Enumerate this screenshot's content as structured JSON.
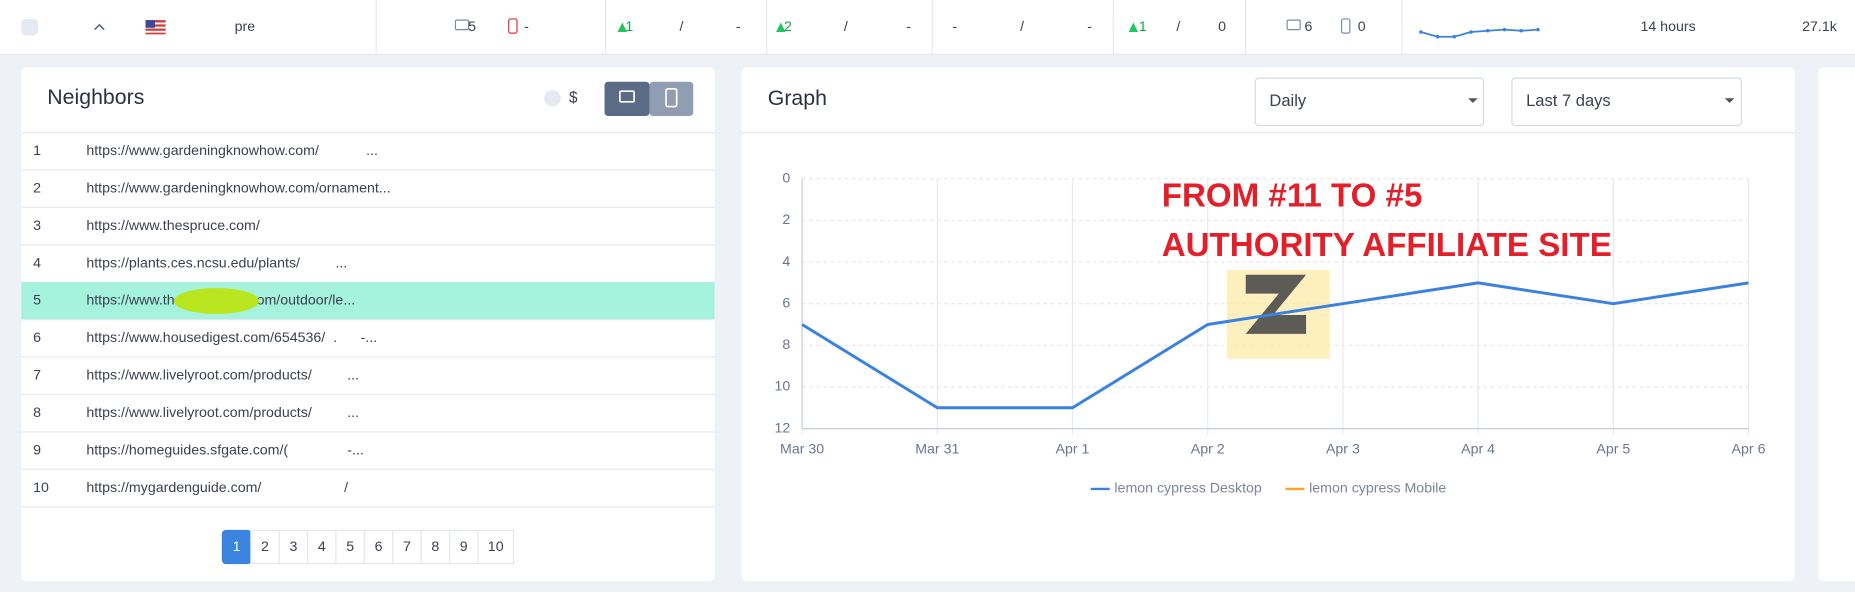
{
  "top_row": {
    "cells": [
      "pre",
      "5",
      "-",
      "1",
      "/",
      "-",
      "2",
      "/",
      "-",
      "-",
      "/",
      "-",
      "1",
      "/",
      "0",
      "6",
      "0",
      "14 hours",
      "27.1k"
    ],
    "sparkline": [
      7,
      11,
      11,
      7,
      6,
      5,
      6,
      5
    ]
  },
  "neighbors": {
    "title": "Neighbors",
    "currency": "$",
    "rows": [
      {
        "rank": 1,
        "url": "https://www.gardeningknowhow.com/            ..."
      },
      {
        "rank": 2,
        "url": "https://www.gardeningknowhow.com/ornament..."
      },
      {
        "rank": 3,
        "url": "https://www.thespruce.com/"
      },
      {
        "rank": 4,
        "url": "https://plants.ces.ncsu.edu/plants/         ..."
      },
      {
        "rank": 5,
        "url": "https://www.the              e.com/outdoor/le...",
        "highlighted": true
      },
      {
        "rank": 6,
        "url": "https://www.housedigest.com/654536/  .      -..."
      },
      {
        "rank": 7,
        "url": "https://www.livelyroot.com/products/         ..."
      },
      {
        "rank": 8,
        "url": "https://www.livelyroot.com/products/         ..."
      },
      {
        "rank": 9,
        "url": "https://homeguides.sfgate.com/(               -..."
      },
      {
        "rank": 10,
        "url": "https://mygardenguide.com/                     /"
      }
    ],
    "pages": [
      "1",
      "2",
      "3",
      "4",
      "5",
      "6",
      "7",
      "8",
      "9",
      "10"
    ],
    "active_page": "1"
  },
  "graph_controls": {
    "interval": "Daily",
    "range": "Last 7 days"
  },
  "chart_data": {
    "type": "line",
    "title": "Graph",
    "categories": [
      "Mar 30",
      "Mar 31",
      "Apr 1",
      "Apr 2",
      "Apr 3",
      "Apr 4",
      "Apr 5",
      "Apr 6"
    ],
    "series": [
      {
        "name": "lemon cypress Desktop",
        "color": "#3b82e0",
        "values": [
          7,
          11,
          11,
          7,
          6,
          5,
          6,
          5
        ]
      },
      {
        "name": "lemon cypress Mobile",
        "color": "#f5a623",
        "values": [
          null,
          null,
          null,
          null,
          null,
          null,
          null,
          null
        ]
      }
    ],
    "ylim": [
      0,
      12
    ],
    "y_reversed": true,
    "yticks": [
      0,
      2,
      4,
      6,
      8,
      10,
      12
    ],
    "grid": true,
    "legend": "bottom",
    "annotations": [
      "FROM #11 TO #5",
      "AUTHORITY AFFILIATE SITE"
    ]
  }
}
